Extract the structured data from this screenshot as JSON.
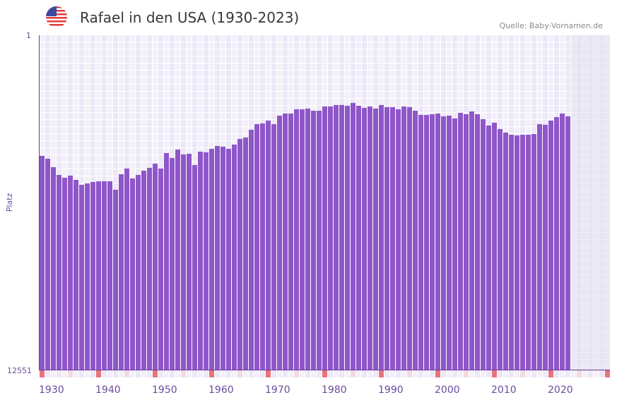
{
  "header": {
    "title": "Rafael in den USA (1930-2023)",
    "source": "Quelle: Baby-Vornamen.de",
    "flag_icon": "usa-flag-icon"
  },
  "colors": {
    "bar": "#8e56c8",
    "axis": "#6a3d9a",
    "decade_marker": "#e8737a",
    "half_decade_marker": "#f5d9e0",
    "future_shade": "#e4e0ee"
  },
  "chart_data": {
    "type": "bar",
    "title": "Rafael in den USA (1930-2023)",
    "xlabel": "",
    "ylabel": "Platz",
    "y_reversed": true,
    "y_scale": "sqrt",
    "ylim": [
      1,
      12551
    ],
    "y_tick_labels": [
      "1",
      "12551"
    ],
    "xlim": [
      1930,
      2030
    ],
    "x_tick_labels": [
      "1930",
      "1940",
      "1950",
      "1960",
      "1970",
      "1980",
      "1990",
      "2000",
      "2010",
      "2020"
    ],
    "grid": true,
    "first_year": 1930,
    "values": [
      1633,
      1711,
      1953,
      2190,
      2279,
      2212,
      2348,
      2511,
      2463,
      2417,
      2394,
      2394,
      2394,
      2679,
      2168,
      1995,
      2302,
      2190,
      2059,
      1974,
      1850,
      1995,
      1558,
      1691,
      1466,
      1595,
      1577,
      1891,
      1521,
      1539,
      1448,
      1377,
      1394,
      1448,
      1342,
      1207,
      1174,
      1003,
      887,
      873,
      818,
      887,
      726,
      688,
      688,
      616,
      616,
      604,
      640,
      640,
      570,
      570,
      547,
      547,
      559,
      515,
      559,
      593,
      570,
      604,
      547,
      581,
      581,
      616,
      570,
      581,
      640,
      713,
      713,
      701,
      688,
      739,
      726,
      778,
      676,
      701,
      652,
      701,
      791,
      915,
      859,
      988,
      1064,
      1111,
      1126,
      1111,
      1111,
      1095,
      887,
      901,
      818,
      752,
      688,
      739
    ]
  }
}
